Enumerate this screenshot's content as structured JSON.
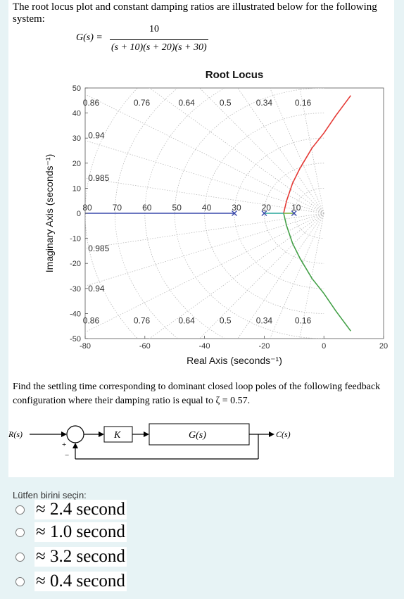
{
  "question": {
    "intro": "The root locus plot and constant damping ratios are illustrated below for the following system:",
    "tf_lhs": "G(s) =",
    "tf_numerator": "10",
    "tf_denominator": "(s + 10)(s + 20)(s + 30)",
    "find_text": "Find the settling time corresponding to dominant closed loop poles of the following feedback configuration where their damping ratio is equal to ζ = 0.57."
  },
  "chart_data": {
    "type": "line",
    "title": "Root Locus",
    "xlabel": "Real Axis (seconds⁻¹)",
    "ylabel": "Imaginary Axis (seconds⁻¹)",
    "xlim": [
      -80,
      20
    ],
    "ylim": [
      -50,
      50
    ],
    "x_ticks": [
      "-80",
      "-60",
      "-40",
      "-20",
      "0",
      "20"
    ],
    "y_ticks": [
      "50",
      "40",
      "30",
      "20",
      "10",
      "0",
      "-10",
      "-20",
      "-30",
      "-40",
      "-50"
    ],
    "grid": true,
    "damping_labels_top": [
      "0.86",
      "0.76",
      "0.64",
      "0.5",
      "0.34",
      "0.16"
    ],
    "damping_labels_bottom": [
      "0.86",
      "0.76",
      "0.64",
      "0.5",
      "0.34",
      "0.16"
    ],
    "damping_labels_left": [
      "0.94",
      "0.985",
      "0.985",
      "0.94"
    ],
    "wn_labels": [
      "80",
      "70",
      "60",
      "50",
      "40",
      "30",
      "20",
      "10"
    ],
    "poles": [
      -10,
      -20,
      -30
    ],
    "series": [
      {
        "color": "#e53935",
        "x": [
          -13.5,
          -12.5,
          -10.5,
          -8,
          -4,
          0,
          4,
          9
        ],
        "y": [
          0,
          5,
          12,
          18,
          26,
          32,
          39,
          47
        ]
      },
      {
        "color": "#43a047",
        "x": [
          -13.5,
          -12.5,
          -10.5,
          -8,
          -4,
          0,
          4,
          9
        ],
        "y": [
          0,
          -5,
          -12,
          -18,
          -26,
          -32,
          -39,
          -47
        ]
      },
      {
        "color": "#3949ab",
        "x": [
          -80,
          -30
        ],
        "y": [
          0,
          0
        ]
      },
      {
        "color": "#26a69a",
        "x": [
          -20,
          -13.5
        ],
        "y": [
          0,
          0
        ]
      },
      {
        "color": "#7cb342",
        "x": [
          -13.5,
          -10
        ],
        "y": [
          0,
          0
        ]
      }
    ]
  },
  "block_diagram": {
    "input": "R(s)",
    "plus": "+",
    "minus": "−",
    "gain": "K",
    "plant": "G(s)",
    "output": "C(s)"
  },
  "quiz": {
    "prompt": "Lütfen birini seçin:",
    "options": [
      "≈ 2.4 second",
      "≈ 1.0 second",
      "≈ 3.2 second",
      "≈ 0.4 second"
    ]
  }
}
